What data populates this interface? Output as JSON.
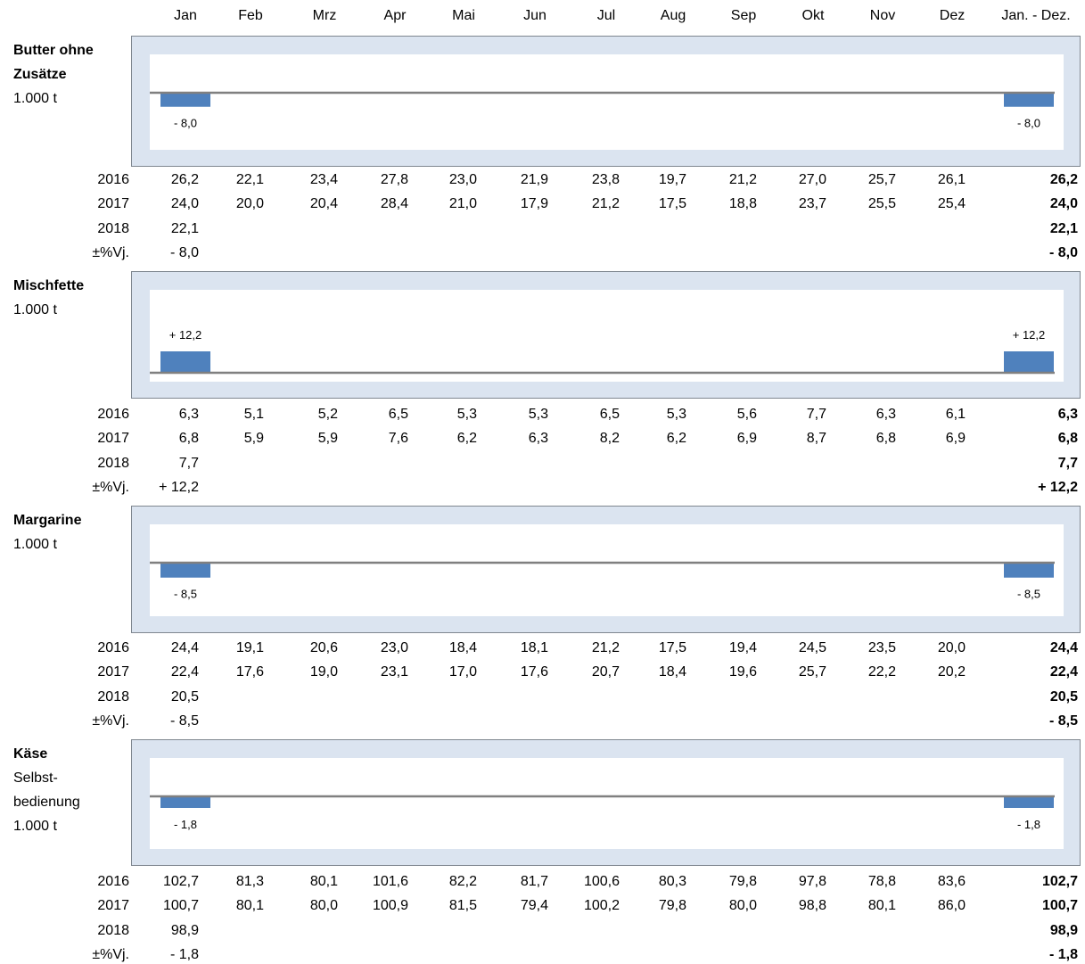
{
  "months": [
    "Jan",
    "Feb",
    "Mrz",
    "Apr",
    "Mai",
    "Jun",
    "Jul",
    "Aug",
    "Sep",
    "Okt",
    "Nov",
    "Dez",
    "Jan. - Dez."
  ],
  "row_labels": [
    "2016",
    "2017",
    "2018",
    "±%Vj."
  ],
  "colors": {
    "bar": "#4f81bd",
    "frame": "#dbe4f0",
    "axis": "#808080"
  },
  "sections": [
    {
      "title_bold": "Butter ohne Zusätze",
      "title_lines": [
        "1.000 t"
      ],
      "rows": {
        "y2016": [
          "26,2",
          "22,1",
          "23,4",
          "27,8",
          "23,0",
          "21,9",
          "23,8",
          "19,7",
          "21,2",
          "27,0",
          "25,7",
          "26,1"
        ],
        "y2017": [
          "24,0",
          "20,0",
          "20,4",
          "28,4",
          "21,0",
          "17,9",
          "21,2",
          "17,5",
          "18,8",
          "23,7",
          "25,5",
          "25,4"
        ],
        "y2018": [
          "22,1"
        ],
        "pct": [
          "- 8,0"
        ]
      },
      "totals": {
        "y2016": "26,2",
        "y2017": "24,0",
        "y2018": "22,1",
        "pct": "- 8,0"
      },
      "bar_labels": [
        "- 8,0",
        "- 8,0"
      ]
    },
    {
      "title_bold": "Mischfette",
      "title_lines": [
        "1.000 t"
      ],
      "rows": {
        "y2016": [
          "6,3",
          "5,1",
          "5,2",
          "6,5",
          "5,3",
          "5,3",
          "6,5",
          "5,3",
          "5,6",
          "7,7",
          "6,3",
          "6,1"
        ],
        "y2017": [
          "6,8",
          "5,9",
          "5,9",
          "7,6",
          "6,2",
          "6,3",
          "8,2",
          "6,2",
          "6,9",
          "8,7",
          "6,8",
          "6,9"
        ],
        "y2018": [
          "7,7"
        ],
        "pct": [
          "+ 12,2"
        ]
      },
      "totals": {
        "y2016": "6,3",
        "y2017": "6,8",
        "y2018": "7,7",
        "pct": "+ 12,2"
      },
      "bar_labels": [
        "+ 12,2",
        "+ 12,2"
      ]
    },
    {
      "title_bold": "Margarine",
      "title_lines": [
        "1.000 t"
      ],
      "rows": {
        "y2016": [
          "24,4",
          "19,1",
          "20,6",
          "23,0",
          "18,4",
          "18,1",
          "21,2",
          "17,5",
          "19,4",
          "24,5",
          "23,5",
          "20,0"
        ],
        "y2017": [
          "22,4",
          "17,6",
          "19,0",
          "23,1",
          "17,0",
          "17,6",
          "20,7",
          "18,4",
          "19,6",
          "25,7",
          "22,2",
          "20,2"
        ],
        "y2018": [
          "20,5"
        ],
        "pct": [
          "- 8,5"
        ]
      },
      "totals": {
        "y2016": "24,4",
        "y2017": "22,4",
        "y2018": "20,5",
        "pct": "- 8,5"
      },
      "bar_labels": [
        "- 8,5",
        "- 8,5"
      ]
    },
    {
      "title_bold": "Käse",
      "title_lines": [
        "Selbst-",
        "bedienung",
        "1.000 t"
      ],
      "rows": {
        "y2016": [
          "102,7",
          "81,3",
          "80,1",
          "101,6",
          "82,2",
          "81,7",
          "100,6",
          "80,3",
          "79,8",
          "97,8",
          "78,8",
          "83,6"
        ],
        "y2017": [
          "100,7",
          "80,1",
          "80,0",
          "100,9",
          "81,5",
          "79,4",
          "100,2",
          "79,8",
          "80,0",
          "98,8",
          "80,1",
          "86,0"
        ],
        "y2018": [
          "98,9"
        ],
        "pct": [
          "- 1,8"
        ]
      },
      "totals": {
        "y2016": "102,7",
        "y2017": "100,7",
        "y2018": "98,9",
        "pct": "- 1,8"
      },
      "bar_labels": [
        "- 1,8",
        "- 1,8"
      ]
    }
  ],
  "chart_data": [
    {
      "type": "bar",
      "categories": [
        "Jan",
        "Jan. - Dez."
      ],
      "values": [
        -8.0,
        -8.0
      ]
    },
    {
      "type": "bar",
      "categories": [
        "Jan",
        "Jan. - Dez."
      ],
      "values": [
        12.2,
        12.2
      ]
    },
    {
      "type": "bar",
      "categories": [
        "Jan",
        "Jan. - Dez."
      ],
      "values": [
        -8.5,
        -8.5
      ]
    },
    {
      "type": "bar",
      "categories": [
        "Jan",
        "Jan. - Dez."
      ],
      "values": [
        -1.8,
        -1.8
      ]
    }
  ]
}
